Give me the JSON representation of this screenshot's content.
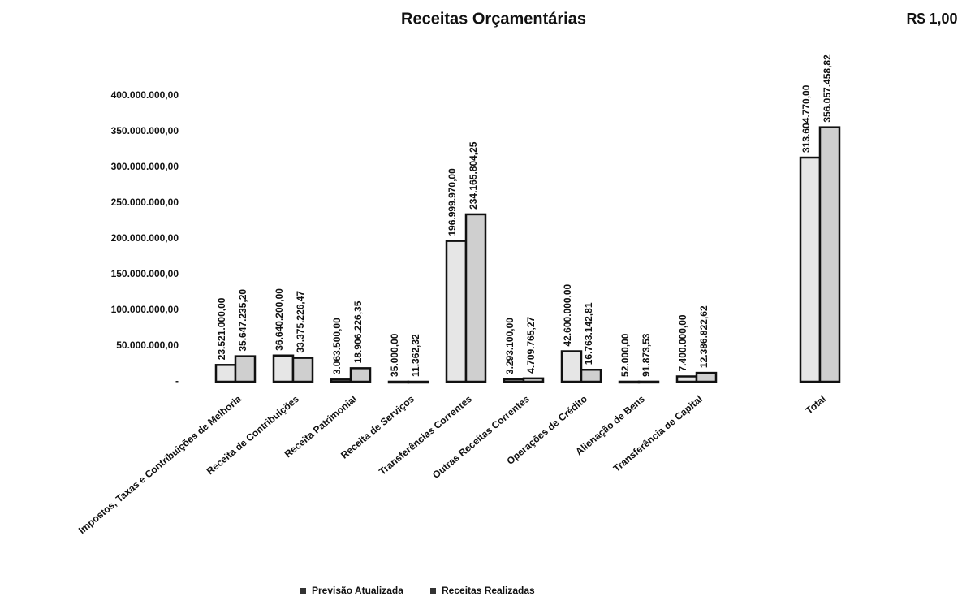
{
  "chart_data": {
    "type": "bar",
    "title": "Receitas Orçamentárias",
    "annotation": "R$ 1,00",
    "categories": [
      "Impostos, Taxas e Contribuições de Melhoria",
      "Receita de Contribuições",
      "Receita Patrimonial",
      "Receita de Serviços",
      "Transferências Correntes",
      "Outras Receitas Correntes",
      "Operações de Crédito",
      "Alienação de Bens",
      "Transferência de Capital",
      "Total"
    ],
    "series": [
      {
        "name": "Previsão Atualizada",
        "color": "#e6e6e6",
        "values": [
          23521000.0,
          36640200.0,
          3063500.0,
          35000.0,
          196999970.0,
          3293100.0,
          42600000.0,
          52000.0,
          7400000.0,
          313604770.0
        ],
        "value_labels": [
          "23.521.000,00",
          "36.640.200,00",
          "3.063.500,00",
          "35.000,00",
          "196.999.970,00",
          "3.293.100,00",
          "42.600.000,00",
          "52.000,00",
          "7.400.000,00",
          "313.604.770,00"
        ]
      },
      {
        "name": "Receitas Realizadas",
        "color": "#cfcfcf",
        "values": [
          35647235.2,
          33375226.47,
          18906226.35,
          11362.32,
          234165804.25,
          4709765.27,
          16763142.81,
          91873.53,
          12386822.62,
          356057458.82
        ],
        "value_labels": [
          "35.647.235,20",
          "33.375.226,47",
          "18.906.226,35",
          "11.362,32",
          "234.165.804,25",
          "4.709.765,27",
          "16.763.142,81",
          "91.873,53",
          "12.386.822,62",
          "356.057.458,82"
        ]
      }
    ],
    "ylim": [
      0,
      400000000
    ],
    "yticks": [
      {
        "value": 0,
        "label": "-"
      },
      {
        "value": 50000000,
        "label": "50.000.000,00"
      },
      {
        "value": 100000000,
        "label": "100.000.000,00"
      },
      {
        "value": 150000000,
        "label": "150.000.000,00"
      },
      {
        "value": 200000000,
        "label": "200.000.000,00"
      },
      {
        "value": 250000000,
        "label": "250.000.000,00"
      },
      {
        "value": 300000000,
        "label": "300.000.000,00"
      },
      {
        "value": 350000000,
        "label": "350.000.000,00"
      },
      {
        "value": 400000000,
        "label": "400.000.000,00"
      }
    ],
    "grid": false,
    "legend": "bottom"
  }
}
